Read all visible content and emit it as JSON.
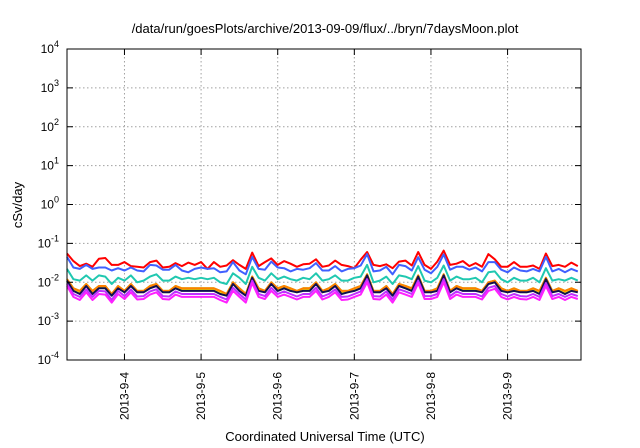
{
  "chart_data": {
    "type": "line",
    "title": "/data/run/goesPlots/archive/2013-09-09/flux/../bryn/7daysMoon.plot",
    "xlabel": "Coordinated Universal Time (UTC)",
    "ylabel": "cSv/day",
    "y_scale": "log",
    "y_exponent_range": [
      -4,
      4
    ],
    "y_tick_base": "10",
    "y_tick_exponents": [
      "-4",
      "-3",
      "-2",
      "-1",
      "0",
      "1",
      "2",
      "3",
      "4"
    ],
    "x_range": [
      "2013-09-03 06:00",
      "2013-09-09 23:00"
    ],
    "x_tick_labels": [
      "2013-9-4",
      "2013-9-5",
      "2013-9-6",
      "2013-9-7",
      "2013-9-8",
      "2013-9-9"
    ],
    "x_tick_dates": [
      "2013-09-04",
      "2013-09-05",
      "2013-09-06",
      "2013-09-07",
      "2013-09-08",
      "2013-09-09"
    ],
    "grid": true,
    "legend": "none",
    "sample_hours": [
      0,
      2,
      4,
      6,
      8,
      10,
      12,
      14,
      16,
      18,
      20,
      22,
      24,
      26,
      28,
      30,
      32,
      34,
      36,
      38,
      40,
      42,
      44,
      46,
      48,
      50,
      52,
      54,
      56,
      58,
      60,
      62,
      64,
      66,
      68,
      70,
      72,
      74,
      76,
      78,
      80,
      82,
      84,
      86,
      88,
      90,
      92,
      94,
      96,
      98,
      100,
      102,
      104,
      106,
      108,
      110,
      112,
      114,
      116,
      118,
      120,
      122,
      124,
      126,
      128,
      130,
      132,
      134,
      136,
      138,
      140,
      142,
      144,
      146,
      148,
      150,
      152,
      154,
      156,
      158,
      160
    ],
    "series": [
      {
        "color": "#ff0000",
        "values": [
          0.055,
          0.035,
          0.026,
          0.03,
          0.025,
          0.04,
          0.042,
          0.028,
          0.028,
          0.033,
          0.026,
          0.025,
          0.024,
          0.033,
          0.036,
          0.024,
          0.025,
          0.031,
          0.026,
          0.032,
          0.028,
          0.033,
          0.022,
          0.033,
          0.025,
          0.027,
          0.037,
          0.028,
          0.022,
          0.058,
          0.026,
          0.033,
          0.041,
          0.028,
          0.035,
          0.03,
          0.025,
          0.029,
          0.03,
          0.039,
          0.025,
          0.027,
          0.036,
          0.028,
          0.026,
          0.023,
          0.038,
          0.06,
          0.028,
          0.026,
          0.029,
          0.023,
          0.034,
          0.036,
          0.027,
          0.06,
          0.028,
          0.022,
          0.034,
          0.065,
          0.028,
          0.03,
          0.035,
          0.026,
          0.031,
          0.025,
          0.053,
          0.039,
          0.025,
          0.025,
          0.033,
          0.025,
          0.025,
          0.027,
          0.022,
          0.055,
          0.026,
          0.028,
          0.025,
          0.032,
          0.026
        ]
      },
      {
        "color": "#4060ff",
        "values": [
          0.045,
          0.024,
          0.022,
          0.028,
          0.022,
          0.024,
          0.024,
          0.02,
          0.023,
          0.02,
          0.024,
          0.02,
          0.019,
          0.028,
          0.027,
          0.021,
          0.021,
          0.028,
          0.02,
          0.018,
          0.022,
          0.024,
          0.022,
          0.023,
          0.018,
          0.019,
          0.033,
          0.02,
          0.016,
          0.045,
          0.022,
          0.021,
          0.034,
          0.024,
          0.023,
          0.019,
          0.022,
          0.021,
          0.023,
          0.031,
          0.02,
          0.02,
          0.026,
          0.019,
          0.022,
          0.023,
          0.027,
          0.053,
          0.019,
          0.02,
          0.025,
          0.016,
          0.028,
          0.026,
          0.02,
          0.044,
          0.021,
          0.017,
          0.025,
          0.052,
          0.021,
          0.025,
          0.025,
          0.021,
          0.024,
          0.019,
          0.033,
          0.033,
          0.021,
          0.018,
          0.024,
          0.02,
          0.019,
          0.022,
          0.019,
          0.045,
          0.019,
          0.022,
          0.018,
          0.022,
          0.019
        ]
      },
      {
        "color": "#20c8b0",
        "values": [
          0.022,
          0.012,
          0.011,
          0.015,
          0.011,
          0.015,
          0.014,
          0.009,
          0.013,
          0.011,
          0.015,
          0.01,
          0.011,
          0.014,
          0.016,
          0.011,
          0.011,
          0.014,
          0.012,
          0.013,
          0.012,
          0.013,
          0.012,
          0.013,
          0.01,
          0.009,
          0.017,
          0.013,
          0.009,
          0.025,
          0.013,
          0.011,
          0.017,
          0.012,
          0.014,
          0.012,
          0.011,
          0.013,
          0.012,
          0.017,
          0.011,
          0.012,
          0.015,
          0.011,
          0.011,
          0.013,
          0.014,
          0.028,
          0.01,
          0.011,
          0.014,
          0.009,
          0.015,
          0.014,
          0.012,
          0.026,
          0.011,
          0.01,
          0.013,
          0.027,
          0.011,
          0.014,
          0.012,
          0.012,
          0.013,
          0.01,
          0.018,
          0.019,
          0.012,
          0.01,
          0.013,
          0.011,
          0.011,
          0.013,
          0.01,
          0.023,
          0.011,
          0.012,
          0.011,
          0.013,
          0.011
        ]
      },
      {
        "color": "#90e000",
        "values": [
          0.012,
          0.007,
          0.006,
          0.009,
          0.006,
          0.008,
          0.008,
          0.005,
          0.008,
          0.006,
          0.009,
          0.006,
          0.006,
          0.008,
          0.009,
          0.006,
          0.006,
          0.008,
          0.007,
          0.007,
          0.007,
          0.007,
          0.007,
          0.007,
          0.006,
          0.005,
          0.01,
          0.007,
          0.005,
          0.014,
          0.007,
          0.006,
          0.01,
          0.007,
          0.008,
          0.007,
          0.006,
          0.007,
          0.007,
          0.01,
          0.006,
          0.007,
          0.009,
          0.006,
          0.006,
          0.007,
          0.008,
          0.016,
          0.006,
          0.006,
          0.008,
          0.005,
          0.009,
          0.008,
          0.007,
          0.015,
          0.006,
          0.006,
          0.007,
          0.016,
          0.006,
          0.008,
          0.007,
          0.007,
          0.007,
          0.006,
          0.01,
          0.011,
          0.007,
          0.006,
          0.007,
          0.006,
          0.006,
          0.007,
          0.006,
          0.013,
          0.006,
          0.007,
          0.006,
          0.007,
          0.006
        ]
      },
      {
        "color": "#f0e000",
        "values": [
          0.011,
          0.0065,
          0.0055,
          0.0082,
          0.0055,
          0.0075,
          0.0074,
          0.0046,
          0.0075,
          0.0056,
          0.0082,
          0.0055,
          0.0056,
          0.0074,
          0.0083,
          0.0056,
          0.0055,
          0.0074,
          0.0064,
          0.0065,
          0.0065,
          0.0064,
          0.0065,
          0.0065,
          0.0055,
          0.0046,
          0.0092,
          0.0065,
          0.0046,
          0.013,
          0.0065,
          0.0056,
          0.0092,
          0.0065,
          0.0074,
          0.0064,
          0.0055,
          0.0065,
          0.0065,
          0.0092,
          0.0055,
          0.0064,
          0.0083,
          0.0055,
          0.0055,
          0.0065,
          0.0074,
          0.015,
          0.0056,
          0.0055,
          0.0074,
          0.0046,
          0.0083,
          0.0074,
          0.0065,
          0.014,
          0.0056,
          0.0056,
          0.0065,
          0.015,
          0.0056,
          0.0074,
          0.0065,
          0.0064,
          0.0065,
          0.0055,
          0.0092,
          0.01,
          0.0065,
          0.0055,
          0.0065,
          0.0056,
          0.0055,
          0.0064,
          0.0055,
          0.012,
          0.0056,
          0.0064,
          0.0055,
          0.0065,
          0.0056
        ]
      },
      {
        "color": "#ff8000",
        "values": [
          0.012,
          0.007,
          0.006,
          0.009,
          0.006,
          0.008,
          0.008,
          0.005,
          0.008,
          0.006,
          0.009,
          0.006,
          0.006,
          0.008,
          0.009,
          0.006,
          0.006,
          0.008,
          0.007,
          0.007,
          0.007,
          0.007,
          0.007,
          0.007,
          0.006,
          0.005,
          0.01,
          0.007,
          0.005,
          0.014,
          0.007,
          0.006,
          0.01,
          0.007,
          0.008,
          0.007,
          0.006,
          0.007,
          0.007,
          0.01,
          0.006,
          0.007,
          0.009,
          0.006,
          0.006,
          0.007,
          0.008,
          0.016,
          0.006,
          0.006,
          0.008,
          0.005,
          0.009,
          0.008,
          0.007,
          0.015,
          0.006,
          0.006,
          0.007,
          0.016,
          0.006,
          0.008,
          0.007,
          0.007,
          0.007,
          0.006,
          0.01,
          0.011,
          0.007,
          0.006,
          0.007,
          0.006,
          0.006,
          0.007,
          0.006,
          0.013,
          0.006,
          0.007,
          0.006,
          0.007,
          0.006
        ]
      },
      {
        "color": "#101050",
        "values": [
          0.011,
          0.006,
          0.005,
          0.008,
          0.005,
          0.007,
          0.007,
          0.0045,
          0.007,
          0.0055,
          0.008,
          0.0055,
          0.0055,
          0.007,
          0.008,
          0.0055,
          0.0055,
          0.007,
          0.006,
          0.006,
          0.006,
          0.006,
          0.006,
          0.006,
          0.005,
          0.0045,
          0.009,
          0.006,
          0.0045,
          0.013,
          0.006,
          0.0055,
          0.009,
          0.006,
          0.007,
          0.006,
          0.0055,
          0.006,
          0.006,
          0.009,
          0.0055,
          0.006,
          0.008,
          0.005,
          0.0055,
          0.006,
          0.007,
          0.015,
          0.0055,
          0.0055,
          0.007,
          0.0045,
          0.008,
          0.007,
          0.006,
          0.014,
          0.0055,
          0.0055,
          0.006,
          0.015,
          0.0055,
          0.007,
          0.006,
          0.006,
          0.006,
          0.0055,
          0.009,
          0.01,
          0.006,
          0.0055,
          0.006,
          0.0055,
          0.0055,
          0.006,
          0.005,
          0.012,
          0.0055,
          0.006,
          0.005,
          0.006,
          0.0055
        ]
      },
      {
        "color": "#c030ff",
        "values": [
          0.009,
          0.005,
          0.0042,
          0.0065,
          0.0042,
          0.006,
          0.0058,
          0.0035,
          0.006,
          0.0044,
          0.0065,
          0.0043,
          0.0044,
          0.0058,
          0.0066,
          0.0044,
          0.0043,
          0.0058,
          0.005,
          0.005,
          0.005,
          0.005,
          0.005,
          0.005,
          0.0042,
          0.0036,
          0.0072,
          0.005,
          0.0036,
          0.011,
          0.005,
          0.0044,
          0.0072,
          0.005,
          0.0058,
          0.005,
          0.0043,
          0.005,
          0.005,
          0.0072,
          0.0043,
          0.005,
          0.0065,
          0.0042,
          0.0043,
          0.005,
          0.0058,
          0.012,
          0.0044,
          0.0043,
          0.0058,
          0.0036,
          0.0066,
          0.0058,
          0.005,
          0.011,
          0.0044,
          0.0044,
          0.005,
          0.012,
          0.0044,
          0.0058,
          0.005,
          0.005,
          0.005,
          0.0043,
          0.0072,
          0.008,
          0.005,
          0.0043,
          0.005,
          0.0044,
          0.0043,
          0.005,
          0.0042,
          0.0095,
          0.0044,
          0.005,
          0.0042,
          0.005,
          0.0044
        ]
      },
      {
        "color": "#ff20ff",
        "values": [
          0.008,
          0.0042,
          0.0035,
          0.0055,
          0.0035,
          0.005,
          0.0048,
          0.003,
          0.005,
          0.0037,
          0.0055,
          0.0036,
          0.0037,
          0.0048,
          0.0055,
          0.0037,
          0.0036,
          0.0048,
          0.0042,
          0.0042,
          0.0042,
          0.0042,
          0.0042,
          0.0042,
          0.0035,
          0.003,
          0.006,
          0.0042,
          0.003,
          0.0095,
          0.0042,
          0.0037,
          0.006,
          0.0042,
          0.0048,
          0.0042,
          0.0036,
          0.0042,
          0.0042,
          0.006,
          0.0036,
          0.0042,
          0.0055,
          0.0035,
          0.0036,
          0.0042,
          0.0048,
          0.01,
          0.0037,
          0.0036,
          0.0048,
          0.003,
          0.0055,
          0.0048,
          0.0042,
          0.0095,
          0.0037,
          0.0037,
          0.0042,
          0.01,
          0.0037,
          0.0048,
          0.0042,
          0.0042,
          0.0042,
          0.0036,
          0.006,
          0.0068,
          0.0042,
          0.0036,
          0.0042,
          0.0037,
          0.0036,
          0.0042,
          0.0035,
          0.008,
          0.0037,
          0.0042,
          0.0035,
          0.0042,
          0.0037
        ]
      }
    ]
  }
}
